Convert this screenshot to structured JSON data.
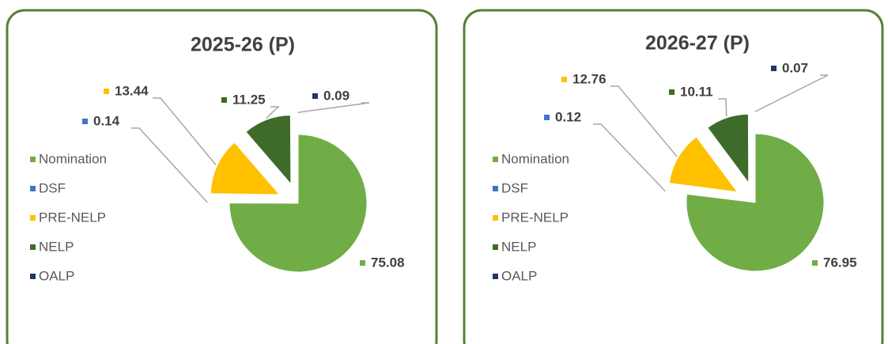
{
  "chart_data": [
    {
      "type": "pie",
      "title": "2025-26 (P)",
      "categories": [
        "Nomination",
        "DSF",
        "PRE-NELP",
        "NELP",
        "OALP"
      ],
      "values": [
        75.08,
        0.14,
        13.44,
        11.25,
        0.09
      ],
      "colors": [
        "#70ad47",
        "#4472c4",
        "#ffc000",
        "#3e6b2a",
        "#1f3864"
      ]
    },
    {
      "type": "pie",
      "title": "2026-27 (P)",
      "categories": [
        "Nomination",
        "DSF",
        "PRE-NELP",
        "NELP",
        "OALP"
      ],
      "values": [
        76.95,
        0.12,
        12.76,
        10.11,
        0.07
      ],
      "colors": [
        "#70ad47",
        "#4472c4",
        "#ffc000",
        "#3e6b2a",
        "#1f3864"
      ]
    }
  ]
}
